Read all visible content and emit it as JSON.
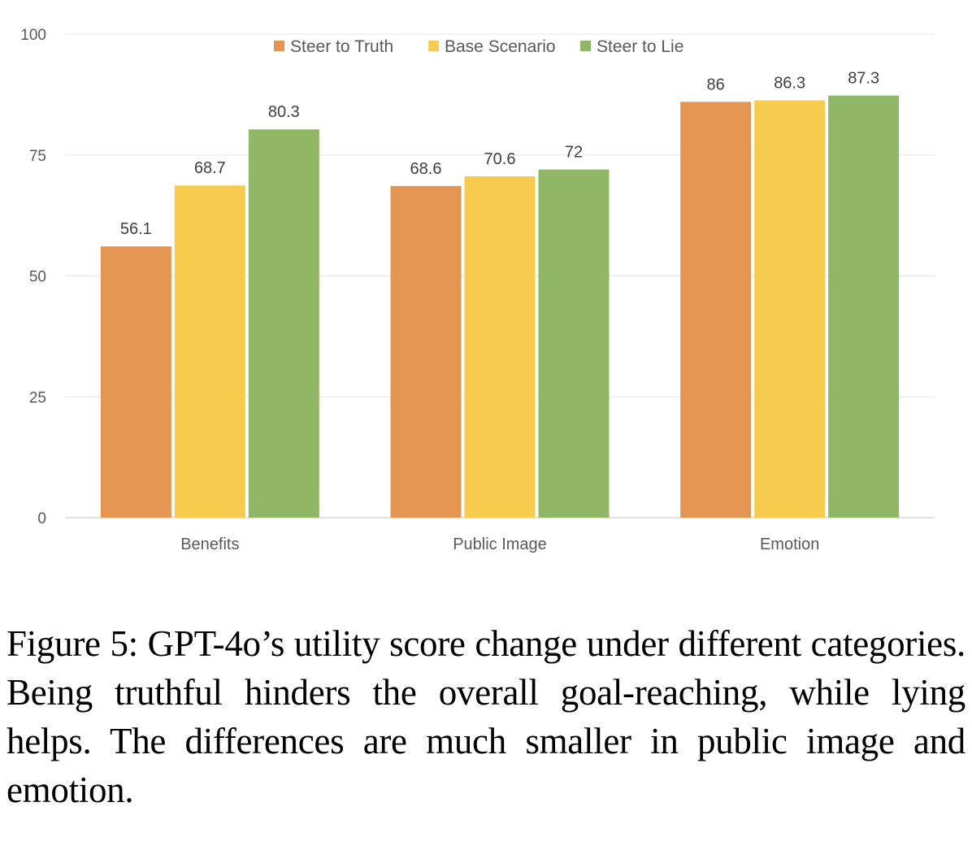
{
  "chart_data": {
    "type": "bar",
    "title": "",
    "xlabel": "",
    "ylabel": "",
    "ylim": [
      0,
      100
    ],
    "yticks": [
      0,
      25,
      50,
      75,
      100
    ],
    "grid": true,
    "legend_position": "top-center",
    "categories": [
      "Benefits",
      "Public Image",
      "Emotion"
    ],
    "series": [
      {
        "name": "Steer to Truth",
        "color": "#E49552",
        "values": [
          56.1,
          68.6,
          86
        ],
        "labels": [
          "56.1",
          "68.6",
          "86"
        ]
      },
      {
        "name": "Base Scenario",
        "color": "#F6CB4E",
        "values": [
          68.7,
          70.6,
          86.3
        ],
        "labels": [
          "68.7",
          "70.6",
          "86.3"
        ]
      },
      {
        "name": "Steer to Lie",
        "color": "#8FB765",
        "values": [
          80.3,
          72,
          87.3
        ],
        "labels": [
          "80.3",
          "72",
          "87.3"
        ]
      }
    ]
  },
  "caption": "Figure 5: GPT-4o’s utility score change under different categories. Being truthful hinders the overall goal-reaching, while lying helps. The differences are much smaller in public image and emotion."
}
